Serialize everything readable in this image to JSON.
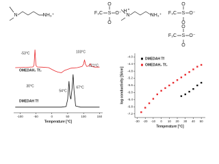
{
  "structure_labels": [
    "N",
    "NH₃⁺",
    "F₃C",
    "S",
    "O",
    "O",
    "O⁻",
    "N",
    "H",
    "+",
    "NH₃⁺",
    "F₃C",
    "S",
    "O",
    "O",
    "O⁻",
    "F₃C",
    "S",
    "O",
    "O",
    "O⁻"
  ],
  "chart_data": [
    {
      "type": "line",
      "xlabel": "Temperature [°C]",
      "xlim": [
        -120,
        160
      ],
      "xticks": [
        -100,
        -50,
        0,
        50,
        100,
        150
      ],
      "ylim": [
        -40,
        20
      ],
      "series": [
        {
          "name": "OMEDAH₂ Tf₂",
          "color": "#e8262a",
          "x": [
            -115,
            -80,
            -60,
            -56,
            -53,
            -50,
            -46,
            -30,
            -10,
            0,
            10,
            20,
            30,
            40,
            60,
            80,
            95,
            100,
            103,
            106,
            110,
            116,
            121,
            125,
            135,
            150
          ],
          "values": [
            0,
            0.3,
            0.6,
            2,
            16,
            2,
            0.6,
            0.4,
            0,
            -1.5,
            -3,
            -4,
            -4.5,
            -2.5,
            -0.5,
            0,
            1,
            3,
            7,
            3,
            1,
            1.5,
            3.5,
            1,
            0.5,
            0.5
          ]
        },
        {
          "name": "DMEDAH Tf",
          "color": "#111111",
          "x": [
            -115,
            -80,
            -40,
            0,
            30,
            45,
            50,
            54,
            57,
            60,
            64,
            67,
            70,
            75,
            90,
            120,
            150
          ],
          "values": [
            -35,
            -35,
            -35,
            -35,
            -35,
            -34.5,
            -28,
            -12,
            -25,
            -28,
            -18,
            -6,
            -20,
            -34,
            -35,
            -35,
            -35
          ]
        }
      ],
      "annotations": [
        "-53°C",
        "30°C",
        "103°C",
        "121°C",
        "54°C",
        "67°C"
      ]
    },
    {
      "type": "scatter",
      "xlabel": "Temperature [°C]",
      "ylabel": "log conductivity [S/cm]",
      "xlim": [
        -33,
        55
      ],
      "xticks": [
        -30,
        -20,
        -10,
        0,
        10,
        20,
        30,
        40,
        50
      ],
      "ylim": [
        -7.4,
        -3.8
      ],
      "yticks": [
        {
          "value": -4,
          "label": "-4.0"
        },
        -4.4,
        -4.8,
        -5.2,
        -5.6,
        {
          "value": -6,
          "label": "-6.0"
        },
        -6.4,
        -6.8,
        -7.2
      ],
      "legend": "upper-left",
      "series": [
        {
          "name": "DMEDAH Tf",
          "color": "#111111",
          "x": [
            25,
            30,
            35,
            40,
            45,
            50
          ],
          "values": [
            -6.2,
            -6.1,
            -5.95,
            -5.8,
            -5.6,
            -5.45
          ]
        },
        {
          "name": "OMEDAH₂ Tf₂",
          "color": "#e8262a",
          "x": [
            -25,
            -20,
            -15,
            -10,
            -5,
            0,
            5,
            10,
            15,
            20,
            25,
            30,
            35,
            40,
            45,
            50
          ],
          "values": [
            -7.1,
            -6.85,
            -6.6,
            -6.35,
            -6.1,
            -5.9,
            -5.75,
            -5.6,
            -5.45,
            -5.3,
            -5.15,
            -5.0,
            -4.85,
            -4.7,
            -4.55,
            -4.45
          ]
        }
      ]
    }
  ]
}
